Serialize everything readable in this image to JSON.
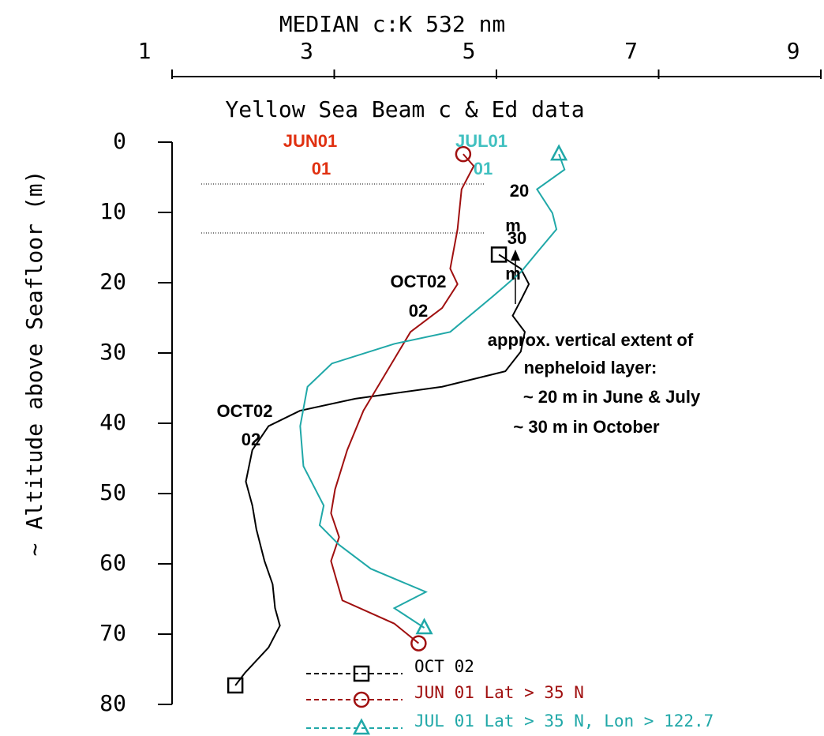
{
  "chart_data": {
    "type": "line",
    "title": "Yellow Sea Beam c & Ed data",
    "x_label": "MEDIAN c:K 532 nm",
    "y_label": "~ Altitude above Seafloor (m)",
    "xlim": [
      1,
      9
    ],
    "xticks": [
      1,
      3,
      5,
      7,
      9
    ],
    "ylim": [
      0,
      80
    ],
    "yticks": [
      0,
      10,
      20,
      30,
      40,
      50,
      60,
      70,
      80
    ],
    "y_inverted": true,
    "series": [
      {
        "name": "OCT 02",
        "color": "#000000",
        "marker": "square",
        "x": [
          1.78,
          1.9,
          2.19,
          2.33,
          2.27,
          2.24,
          2.14,
          2.04,
          1.99,
          1.91,
          1.99,
          2.19,
          2.58,
          3.26,
          4.33,
          5.11,
          5.3,
          5.35,
          5.2,
          5.3,
          5.4,
          5.3,
          5.03
        ],
        "y": [
          77.3,
          75.5,
          71.9,
          68.8,
          66.3,
          62.9,
          59.6,
          55.1,
          51.7,
          48.3,
          43.8,
          40.4,
          38.2,
          36.5,
          34.8,
          32.6,
          29.8,
          27.0,
          24.7,
          22.5,
          20.2,
          18.0,
          16.0
        ]
      },
      {
        "name": "JUN 01 Lat > 35 N",
        "color": "#a01010",
        "marker": "circle",
        "x": [
          4.59,
          4.72,
          4.57,
          4.52,
          4.43,
          4.52,
          4.33,
          3.94,
          3.65,
          3.36,
          3.16,
          3.01,
          2.96,
          3.06,
          2.96,
          3.1,
          3.74,
          4.04
        ],
        "y": [
          1.7,
          3.4,
          6.7,
          12.4,
          18.0,
          20.2,
          23.6,
          27.0,
          32.6,
          38.2,
          43.8,
          49.4,
          52.8,
          56.2,
          59.6,
          65.2,
          68.5,
          71.3
        ]
      },
      {
        "name": "JUL 01 Lat > 35 N, Lon > 122.7",
        "color": "#20a8a8",
        "marker": "triangle",
        "x": [
          5.77,
          5.84,
          5.5,
          5.69,
          5.74,
          5.5,
          5.3,
          4.96,
          4.43,
          3.74,
          2.97,
          2.67,
          2.58,
          2.62,
          2.87,
          2.82,
          3.06,
          3.45,
          4.13,
          3.74,
          4.11
        ],
        "y": [
          1.7,
          3.9,
          6.7,
          10.1,
          12.4,
          15.7,
          18.5,
          21.9,
          27.0,
          28.7,
          31.5,
          34.8,
          40.4,
          46.1,
          51.7,
          54.5,
          57.3,
          60.7,
          64.0,
          66.3,
          69.1
        ]
      }
    ],
    "annotations": [
      {
        "text": "JUN01",
        "color": "#e03010"
      },
      {
        "text": "01",
        "color": "#e03010"
      },
      {
        "text": "JUL01",
        "color": "#40c0c0"
      },
      {
        "text": "01",
        "color": "#40c0c0"
      },
      {
        "text": "20",
        "color": "#000000"
      },
      {
        "text": "m",
        "color": "#000000"
      },
      {
        "text": "30",
        "color": "#000000"
      },
      {
        "text": "m",
        "color": "#000000"
      },
      {
        "text": "OCT02",
        "color": "#000000"
      },
      {
        "text": "02",
        "color": "#000000"
      },
      {
        "text": "OCT02",
        "color": "#000000"
      },
      {
        "text": "02",
        "color": "#000000"
      },
      {
        "text": "approx. vertical extent of",
        "color": "#000000"
      },
      {
        "text": "nepheloid layer:",
        "color": "#000000"
      },
      {
        "text": "~ 20 m in June & July",
        "color": "#000000"
      },
      {
        "text": "~ 30 m in October",
        "color": "#000000"
      }
    ]
  }
}
